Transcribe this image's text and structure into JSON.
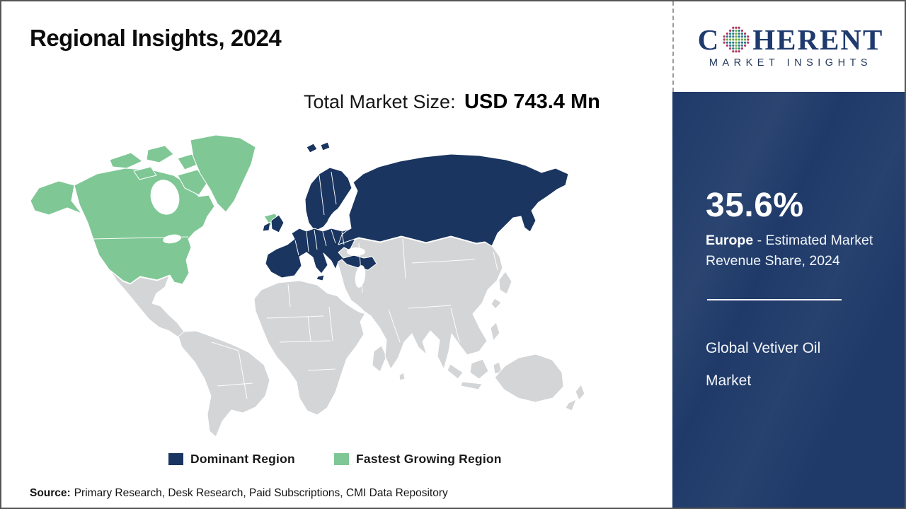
{
  "header": {
    "title": "Regional Insights, 2024"
  },
  "market_size": {
    "label": "Total Market Size:",
    "value": "USD 743.4 Mn"
  },
  "logo": {
    "brand_prefix": "C",
    "brand_suffix": "HERENT",
    "subtitle": "MARKET INSIGHTS",
    "dot_colors": {
      "rim": "#B13A64",
      "cross": "#6FAD47",
      "fill": "#2F7C90"
    }
  },
  "sidebar": {
    "share_value": "35.6%",
    "region": "Europe",
    "region_rest": " - Estimated Market Revenue Share, 2024",
    "market_line1": "Global Vetiver Oil",
    "market_line2": "Market"
  },
  "legend": {
    "dominant": {
      "label": "Dominant Region"
    },
    "fastest": {
      "label": "Fastest Growing Region"
    }
  },
  "source": {
    "label": "Source:",
    "text": "Primary Research, Desk Research, Paid Subscriptions, CMI Data Repository"
  },
  "colors": {
    "dominant_region": "#1A355F",
    "fastest_growing_region": "#7FC795",
    "map_other_region": "#D4D5D7",
    "sidebar_panel": "#1F3A69",
    "brand_navy": "#1F3A6E"
  },
  "chart_data": {
    "type": "choropleth_map",
    "title": "Regional Insights, 2024",
    "market": "Global Vetiver Oil Market",
    "total_market_size": "USD 743.4 Mn",
    "regions": [
      {
        "name": "Europe",
        "status": "Dominant Region",
        "color": "#1A355F",
        "estimated_market_revenue_share_2024_pct": 35.6
      },
      {
        "name": "North America",
        "status": "Fastest Growing Region",
        "color": "#7FC795"
      },
      {
        "name": "Rest of World",
        "status": "Other",
        "color": "#D4D5D7"
      }
    ],
    "legend": [
      "Dominant Region",
      "Fastest Growing Region"
    ],
    "legend_position": "bottom",
    "source": "Primary Research, Desk Research, Paid Subscriptions, CMI Data Repository"
  }
}
